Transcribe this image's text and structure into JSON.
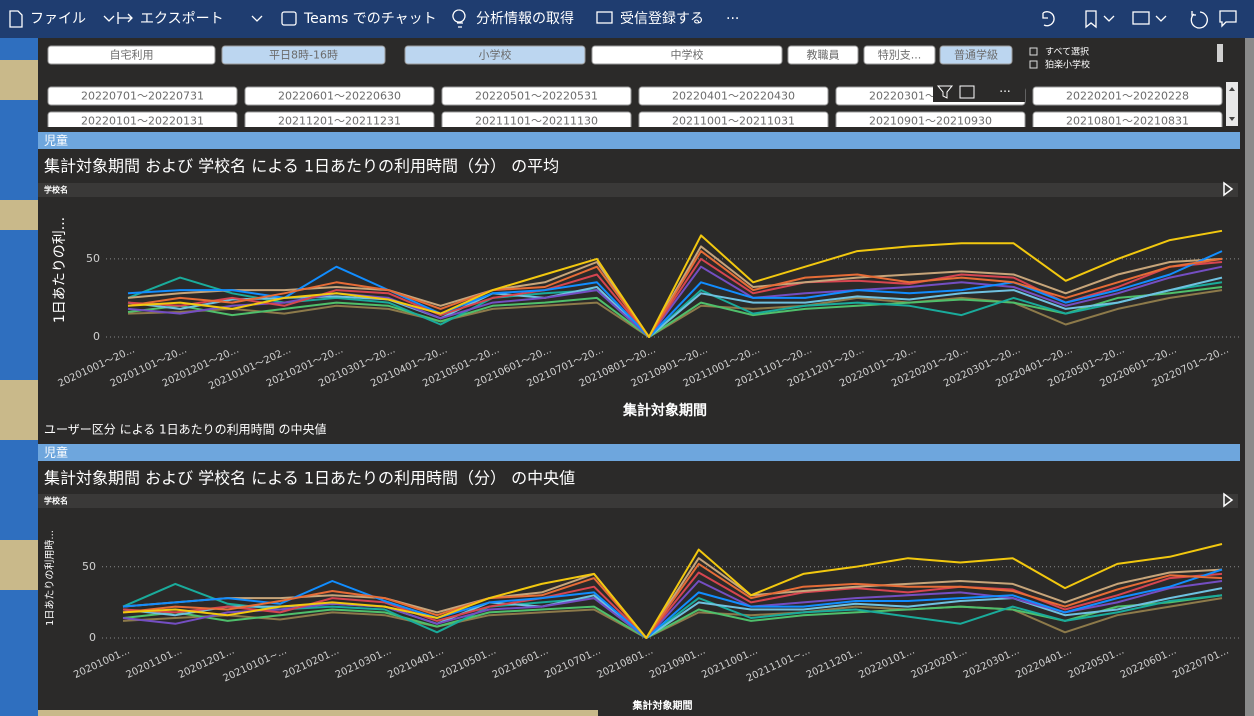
{
  "toolbar": {
    "items": [
      "ファイル",
      "エクスポート",
      "Teams でのチャット",
      "分析情報の取得",
      "受信登録する",
      "···"
    ]
  },
  "slicers": {
    "buttons": [
      {
        "label": "自宅利用",
        "selected": false
      },
      {
        "label": "平日8時-16時",
        "selected": true
      },
      {
        "label": "小学校",
        "selected": true
      },
      {
        "label": "中学校",
        "selected": false
      },
      {
        "label": "教職員",
        "selected": false
      },
      {
        "label": "特別支...",
        "selected": false
      },
      {
        "label": "普通学級",
        "selected": true
      }
    ],
    "checkboxes": [
      "すべて選択",
      "狛楽小学校"
    ],
    "dates": [
      "20220701～20220731",
      "20220601～20220630",
      "20220501～20220531",
      "20220401～20220430",
      "20220301～20220331",
      "20220201～20220228",
      "20220101～20220131",
      "20211201～20211231",
      "20211101～20211130",
      "20211001～20211031",
      "20210901～20210930",
      "20210801～20210831"
    ]
  },
  "between_text": "ユーザー区分 による 1日あたりの利用時間 の中央値",
  "chart_data": [
    {
      "type": "line",
      "header": "児童",
      "title": "集計対象期間 および 学校名 による 1日あたりの利用時間（分） の平均",
      "legend_title": "学校名",
      "y_label": "1日あたりの利...",
      "x_label": "集計対象期間",
      "categories": [
        "20201001～20...",
        "20201101～20...",
        "20201201～20...",
        "20210101～202...",
        "20210201～20...",
        "20210301～20...",
        "20210401～20...",
        "20210501～20...",
        "20210601～20...",
        "20210701～20...",
        "20210801～20...",
        "20210901～20...",
        "20211001～20...",
        "20211101～20...",
        "20211201～20...",
        "20220101～20...",
        "20220201～20...",
        "20220301～20...",
        "20220401～20...",
        "20220501～20...",
        "20220601～20...",
        "20220701～20..."
      ],
      "ylim": [
        0,
        80
      ],
      "yticks": [
        0,
        50
      ],
      "grid": true,
      "series": [
        {
          "color": "#8d7a4a",
          "values": [
            15,
            16,
            18,
            15,
            20,
            18,
            10,
            18,
            20,
            22,
            0,
            20,
            18,
            20,
            25,
            22,
            25,
            22,
            8,
            18,
            25,
            30
          ]
        },
        {
          "color": "#4fbf6b",
          "values": [
            16,
            20,
            14,
            18,
            22,
            20,
            10,
            20,
            22,
            25,
            0,
            22,
            14,
            18,
            20,
            22,
            24,
            22,
            15,
            25,
            28,
            32
          ]
        },
        {
          "color": "#1aab9b",
          "values": [
            25,
            38,
            28,
            22,
            25,
            22,
            8,
            25,
            28,
            30,
            0,
            30,
            15,
            20,
            22,
            20,
            14,
            25,
            15,
            22,
            30,
            35
          ]
        },
        {
          "color": "#6fc1e0",
          "values": [
            22,
            18,
            24,
            25,
            26,
            24,
            12,
            28,
            25,
            32,
            0,
            28,
            22,
            22,
            26,
            24,
            28,
            30,
            18,
            22,
            30,
            38
          ]
        },
        {
          "color": "#744ec2",
          "values": [
            18,
            15,
            20,
            22,
            28,
            25,
            12,
            22,
            25,
            30,
            0,
            45,
            25,
            28,
            30,
            32,
            35,
            32,
            20,
            28,
            38,
            45
          ]
        },
        {
          "color": "#d64550",
          "values": [
            22,
            20,
            25,
            20,
            30,
            28,
            14,
            25,
            30,
            40,
            0,
            50,
            28,
            35,
            36,
            34,
            40,
            38,
            22,
            32,
            45,
            48
          ]
        },
        {
          "color": "#c7a57a",
          "values": [
            25,
            28,
            30,
            30,
            32,
            30,
            20,
            30,
            35,
            48,
            0,
            58,
            32,
            35,
            38,
            40,
            42,
            40,
            28,
            40,
            48,
            50
          ]
        },
        {
          "color": "#118dff",
          "values": [
            28,
            30,
            30,
            25,
            45,
            30,
            15,
            28,
            30,
            35,
            0,
            35,
            25,
            25,
            30,
            28,
            30,
            35,
            22,
            30,
            40,
            55
          ]
        },
        {
          "color": "#e66c37",
          "values": [
            20,
            25,
            22,
            28,
            35,
            30,
            18,
            30,
            32,
            45,
            0,
            55,
            30,
            38,
            40,
            35,
            38,
            35,
            25,
            35,
            45,
            50
          ]
        },
        {
          "color": "#f2c80f",
          "values": [
            20,
            22,
            18,
            25,
            28,
            24,
            15,
            30,
            40,
            50,
            0,
            65,
            35,
            45,
            55,
            58,
            60,
            60,
            36,
            50,
            62,
            68
          ]
        }
      ]
    },
    {
      "type": "line",
      "header": "児童",
      "title": "集計対象期間 および 学校名 による 1日あたりの利用時間（分） の中央値",
      "legend_title": "学校名",
      "y_label": "1日あたりの利用時...",
      "x_label": "集計対象期間",
      "categories": [
        "20201001...",
        "20201101...",
        "20201201...",
        "20210101~...",
        "20210201...",
        "20210301...",
        "20210401...",
        "20210501...",
        "20210601...",
        "20210701...",
        "20210801...",
        "20210901...",
        "20211001...",
        "20211101~...",
        "20211201...",
        "20220101...",
        "20220201...",
        "20220301...",
        "20220401...",
        "20220501...",
        "20220601...",
        "20220701..."
      ],
      "ylim": [
        0,
        80
      ],
      "yticks": [
        0,
        50
      ],
      "grid": true,
      "series": [
        {
          "color": "#8d7a4a",
          "values": [
            12,
            14,
            16,
            13,
            18,
            16,
            8,
            16,
            18,
            20,
            0,
            18,
            16,
            18,
            22,
            20,
            22,
            20,
            4,
            16,
            22,
            28
          ]
        },
        {
          "color": "#4fbf6b",
          "values": [
            14,
            18,
            12,
            16,
            20,
            18,
            8,
            18,
            20,
            22,
            0,
            20,
            12,
            16,
            18,
            20,
            22,
            20,
            12,
            22,
            25,
            30
          ]
        },
        {
          "color": "#1aab9b",
          "values": [
            22,
            38,
            24,
            20,
            22,
            20,
            4,
            22,
            25,
            28,
            0,
            28,
            14,
            18,
            20,
            15,
            10,
            22,
            12,
            18,
            26,
            30
          ]
        },
        {
          "color": "#6fc1e0",
          "values": [
            20,
            16,
            22,
            22,
            24,
            22,
            10,
            25,
            22,
            30,
            0,
            25,
            20,
            20,
            24,
            22,
            26,
            28,
            16,
            20,
            28,
            35
          ]
        },
        {
          "color": "#744ec2",
          "values": [
            14,
            10,
            18,
            20,
            24,
            22,
            10,
            20,
            22,
            28,
            0,
            40,
            22,
            25,
            28,
            30,
            32,
            28,
            18,
            25,
            35,
            40
          ]
        },
        {
          "color": "#d64550",
          "values": [
            20,
            18,
            22,
            18,
            28,
            25,
            12,
            22,
            28,
            36,
            0,
            46,
            25,
            32,
            35,
            32,
            36,
            34,
            20,
            30,
            42,
            45
          ]
        },
        {
          "color": "#c7a57a",
          "values": [
            22,
            25,
            28,
            28,
            30,
            28,
            18,
            28,
            32,
            45,
            0,
            56,
            30,
            33,
            36,
            38,
            40,
            38,
            25,
            38,
            46,
            48
          ]
        },
        {
          "color": "#118dff",
          "values": [
            22,
            25,
            28,
            24,
            40,
            26,
            14,
            25,
            28,
            32,
            0,
            32,
            22,
            22,
            26,
            26,
            28,
            30,
            18,
            28,
            36,
            48
          ]
        },
        {
          "color": "#e66c37",
          "values": [
            18,
            22,
            20,
            26,
            33,
            28,
            16,
            28,
            30,
            42,
            0,
            52,
            28,
            36,
            38,
            36,
            36,
            33,
            22,
            34,
            44,
            42
          ]
        },
        {
          "color": "#f2c80f",
          "values": [
            18,
            20,
            16,
            22,
            25,
            22,
            14,
            28,
            38,
            45,
            0,
            62,
            30,
            45,
            50,
            56,
            53,
            56,
            35,
            52,
            57,
            66
          ]
        }
      ]
    }
  ]
}
